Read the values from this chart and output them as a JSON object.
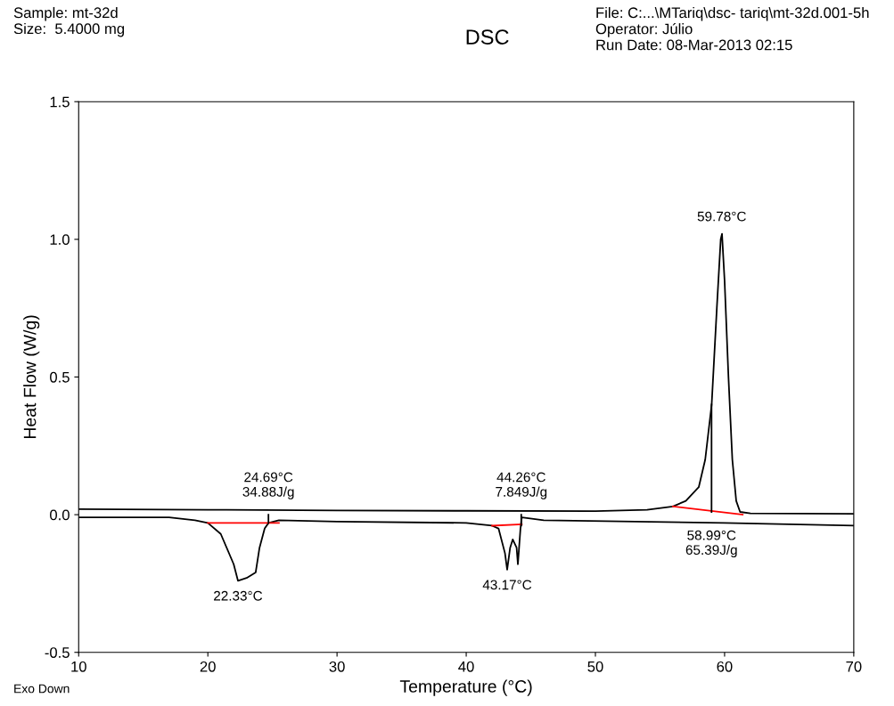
{
  "chart_data": {
    "type": "line",
    "title": "DSC",
    "xlabel": "Temperature (°C)",
    "ylabel": "Heat Flow (W/g)",
    "xlim": [
      10,
      70
    ],
    "ylim": [
      -0.5,
      1.5
    ],
    "xticks": [
      10,
      20,
      30,
      40,
      50,
      60,
      70
    ],
    "yticks": [
      {
        "value": -0.5,
        "label": "-0.5"
      },
      {
        "value": 0,
        "label": "0.0"
      },
      {
        "value": 0.5,
        "label": "0.5"
      },
      {
        "value": 1.0,
        "label": "1.0"
      },
      {
        "value": 1.5,
        "label": "1.5"
      }
    ],
    "grid": false,
    "legend": false,
    "marker": "none",
    "line_style": "solid",
    "series": [
      {
        "color": "#000000",
        "x": [
          10,
          20,
          30,
          40,
          50,
          54,
          56,
          57,
          58,
          58.5,
          59,
          59.4,
          59.7,
          59.8,
          60.0,
          60.3,
          60.6,
          60.9,
          61.2,
          62,
          70
        ],
        "values": [
          0.02,
          0.018,
          0.015,
          0.014,
          0.013,
          0.018,
          0.03,
          0.05,
          0.1,
          0.2,
          0.4,
          0.75,
          1.0,
          1.02,
          0.85,
          0.5,
          0.2,
          0.05,
          0.01,
          0.005,
          0.003
        ]
      },
      {
        "color": "#000000",
        "x": [
          10,
          17,
          19,
          20,
          21,
          22,
          22.33,
          23,
          23.7,
          24,
          24.4,
          24.7,
          25.5,
          30,
          40,
          42,
          42.5,
          43.0,
          43.17,
          43.4,
          43.6,
          43.9,
          44.0,
          44.2,
          44.3,
          46,
          60,
          70
        ],
        "values": [
          -0.01,
          -0.01,
          -0.02,
          -0.03,
          -0.07,
          -0.18,
          -0.24,
          -0.23,
          -0.21,
          -0.12,
          -0.05,
          -0.03,
          -0.02,
          -0.025,
          -0.03,
          -0.04,
          -0.05,
          -0.14,
          -0.2,
          -0.12,
          -0.09,
          -0.12,
          -0.18,
          -0.05,
          -0.01,
          -0.02,
          -0.03,
          -0.04
        ]
      },
      {
        "color": "#ff0000",
        "x": [
          20,
          25.5
        ],
        "values": [
          -0.03,
          -0.03
        ]
      },
      {
        "color": "#ff0000",
        "x": [
          42,
          44.3
        ],
        "values": [
          -0.04,
          -0.035
        ]
      },
      {
        "color": "#ff0000",
        "x": [
          56,
          61.4
        ],
        "values": [
          0.03,
          0.0
        ]
      },
      {
        "color": "#000000",
        "x": [
          24.69,
          24.69
        ],
        "values": [
          -0.03,
          0.0
        ]
      },
      {
        "color": "#000000",
        "x": [
          44.26,
          44.26
        ],
        "values": [
          -0.04,
          -0.0
        ]
      },
      {
        "color": "#000000",
        "x": [
          58.99,
          58.99
        ],
        "values": [
          0.01,
          0.4
        ]
      }
    ],
    "annotations": [
      "Sample: mt-32d\nSize:  5.4000 mg",
      "File: C:...\\MTariq\\dsc- tariq\\mt-32d.001-5h\nOperator: Júlio\nRun Date: 08-Mar-2013 02:15",
      "Exo Down",
      {
        "text": "24.69°C\n34.88J/g",
        "x": 24.69,
        "y": 0.02
      },
      {
        "text": "22.33°C",
        "x": 22.33,
        "y": -0.24
      },
      {
        "text": "44.26°C\n7.849J/g",
        "x": 44.26,
        "y": 0.02
      },
      {
        "text": "43.17°C",
        "x": 43.17,
        "y": -0.2
      },
      {
        "text": "59.78°C",
        "x": 59.78,
        "y": 1.02
      },
      {
        "text": "58.99°C\n65.39J/g",
        "x": 58.99,
        "y": -0.02
      }
    ]
  }
}
